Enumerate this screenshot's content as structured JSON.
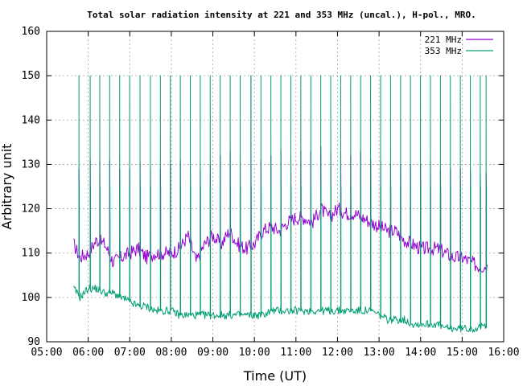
{
  "chart_data": {
    "type": "line",
    "title": "Total solar radiation intensity at 221 and 353 MHz (uncal.), H-pol., MRO.",
    "xlabel": "Time (UT)",
    "ylabel": "Arbitrary unit",
    "x_unit": "hours UT",
    "xlim": [
      5.0,
      16.0
    ],
    "ylim": [
      90,
      160
    ],
    "x_ticks": [
      "05:00",
      "06:00",
      "07:00",
      "08:00",
      "09:00",
      "10:00",
      "11:00",
      "12:00",
      "13:00",
      "14:00",
      "15:00",
      "16:00"
    ],
    "y_ticks": [
      "90",
      "100",
      "110",
      "120",
      "130",
      "140",
      "150",
      "160"
    ],
    "grid": true,
    "legend_position": "top-right",
    "series": [
      {
        "name": "221 MHz",
        "color": "#9400d3",
        "baseline": [
          [
            5.65,
            112
          ],
          [
            5.8,
            109
          ],
          [
            6.0,
            110
          ],
          [
            6.2,
            113
          ],
          [
            6.4,
            112
          ],
          [
            6.6,
            108
          ],
          [
            6.8,
            109
          ],
          [
            7.0,
            110
          ],
          [
            7.2,
            111
          ],
          [
            7.4,
            109
          ],
          [
            7.6,
            110
          ],
          [
            7.8,
            110
          ],
          [
            8.0,
            110
          ],
          [
            8.2,
            111
          ],
          [
            8.4,
            114
          ],
          [
            8.6,
            108
          ],
          [
            8.8,
            112
          ],
          [
            9.0,
            114
          ],
          [
            9.2,
            112
          ],
          [
            9.4,
            115
          ],
          [
            9.6,
            112
          ],
          [
            9.8,
            111
          ],
          [
            10.0,
            112
          ],
          [
            10.2,
            115
          ],
          [
            10.4,
            116
          ],
          [
            10.6,
            115
          ],
          [
            10.8,
            117
          ],
          [
            11.0,
            118
          ],
          [
            11.2,
            118
          ],
          [
            11.4,
            117
          ],
          [
            11.6,
            120
          ],
          [
            11.8,
            118
          ],
          [
            12.0,
            120
          ],
          [
            12.2,
            119
          ],
          [
            12.4,
            119
          ],
          [
            12.6,
            118
          ],
          [
            12.8,
            117
          ],
          [
            13.0,
            116
          ],
          [
            13.2,
            115
          ],
          [
            13.4,
            115
          ],
          [
            13.6,
            113
          ],
          [
            13.8,
            112
          ],
          [
            14.0,
            111
          ],
          [
            14.2,
            111
          ],
          [
            14.4,
            111
          ],
          [
            14.6,
            110
          ],
          [
            14.8,
            109
          ],
          [
            15.0,
            109
          ],
          [
            15.2,
            108
          ],
          [
            15.4,
            107
          ],
          [
            15.6,
            107
          ]
        ],
        "spike_times": [
          5.78,
          6.05,
          6.28,
          6.52,
          6.76,
          7.0,
          7.25,
          7.5,
          7.74,
          7.98,
          8.22,
          8.46,
          8.7,
          8.94,
          9.18,
          9.42,
          9.66,
          9.92,
          10.16,
          10.4,
          10.64,
          10.88,
          11.12,
          11.36,
          11.6,
          11.84,
          12.08,
          12.32,
          12.56,
          12.8,
          13.04,
          13.28,
          13.52,
          13.76,
          14.0,
          14.24,
          14.48,
          14.72,
          14.96,
          15.2,
          15.44,
          15.58
        ],
        "spike_peaks": [
          129,
          131,
          131,
          131,
          129,
          129,
          130,
          129,
          129,
          130,
          131,
          130,
          129,
          130,
          132,
          133,
          132,
          133,
          131,
          132,
          133,
          132,
          133,
          133,
          134,
          133,
          133,
          132,
          133,
          131,
          131,
          130,
          130,
          130,
          130,
          131,
          129,
          129,
          129,
          129,
          128,
          128
        ],
        "spike_maxima": [
          [
            9.54,
            150
          ],
          [
            9.92,
            150
          ]
        ]
      },
      {
        "name": "353 MHz",
        "color": "#009e73",
        "baseline": [
          [
            5.65,
            102
          ],
          [
            5.8,
            100
          ],
          [
            6.0,
            102
          ],
          [
            6.2,
            102
          ],
          [
            6.4,
            101
          ],
          [
            6.6,
            101
          ],
          [
            6.8,
            100
          ],
          [
            7.0,
            99
          ],
          [
            7.2,
            98
          ],
          [
            7.4,
            98
          ],
          [
            7.6,
            97
          ],
          [
            7.8,
            97
          ],
          [
            8.0,
            97
          ],
          [
            8.2,
            96
          ],
          [
            8.4,
            96
          ],
          [
            8.6,
            96
          ],
          [
            8.8,
            96
          ],
          [
            9.0,
            96
          ],
          [
            9.2,
            96
          ],
          [
            9.4,
            96
          ],
          [
            9.6,
            96
          ],
          [
            9.8,
            96
          ],
          [
            10.0,
            96
          ],
          [
            10.2,
            96
          ],
          [
            10.4,
            97
          ],
          [
            10.6,
            97
          ],
          [
            10.8,
            97
          ],
          [
            11.0,
            97
          ],
          [
            11.2,
            97
          ],
          [
            11.4,
            97
          ],
          [
            11.6,
            97
          ],
          [
            11.8,
            97
          ],
          [
            12.0,
            97
          ],
          [
            12.2,
            97
          ],
          [
            12.4,
            97
          ],
          [
            12.6,
            97
          ],
          [
            12.8,
            97
          ],
          [
            13.0,
            96
          ],
          [
            13.2,
            95
          ],
          [
            13.4,
            95
          ],
          [
            13.6,
            95
          ],
          [
            13.8,
            94
          ],
          [
            14.0,
            94
          ],
          [
            14.2,
            94
          ],
          [
            14.4,
            94
          ],
          [
            14.6,
            93
          ],
          [
            14.8,
            93
          ],
          [
            15.0,
            93
          ],
          [
            15.2,
            93
          ],
          [
            15.4,
            93
          ],
          [
            15.6,
            94
          ]
        ],
        "spike_times": [
          5.78,
          6.05,
          6.28,
          6.52,
          6.76,
          7.0,
          7.25,
          7.5,
          7.74,
          7.98,
          8.22,
          8.46,
          8.7,
          8.94,
          9.18,
          9.42,
          9.66,
          9.92,
          10.16,
          10.4,
          10.64,
          10.88,
          11.12,
          11.36,
          11.6,
          11.84,
          12.08,
          12.32,
          12.56,
          12.8,
          13.04,
          13.28,
          13.52,
          13.76,
          14.0,
          14.24,
          14.48,
          14.72,
          14.96,
          15.2,
          15.44,
          15.58
        ],
        "spike_peak": 150,
        "spike_plateau": 125
      }
    ]
  }
}
